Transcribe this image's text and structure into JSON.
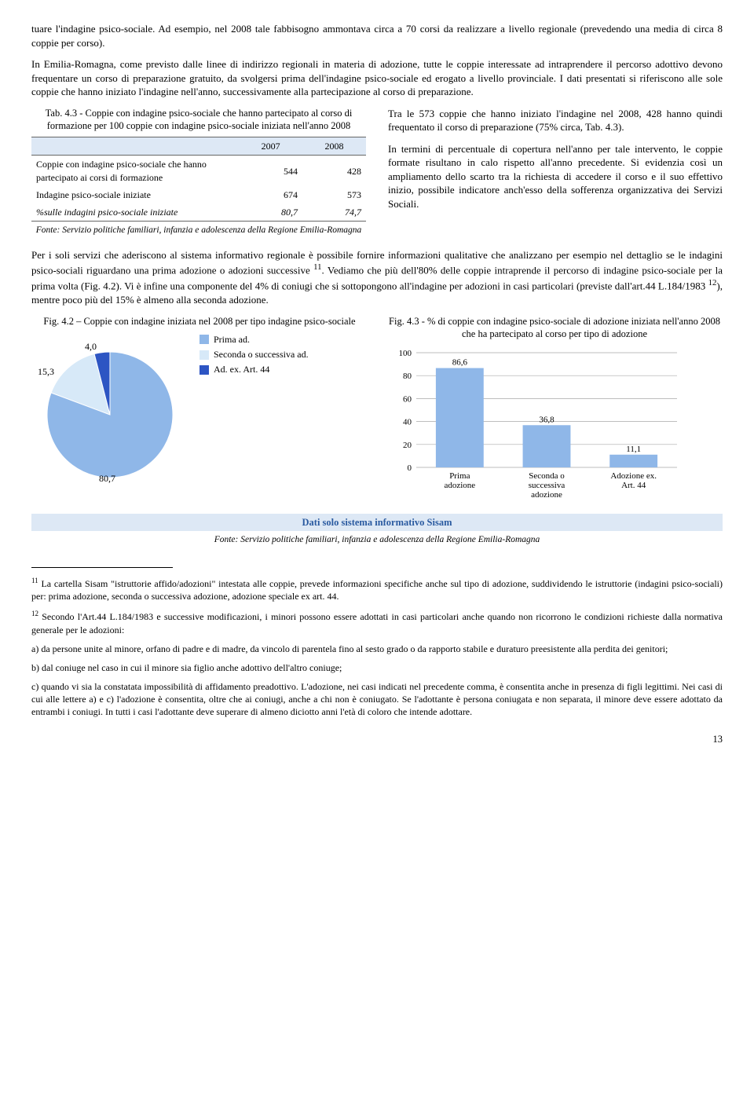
{
  "para1": "tuare l'indagine psico-sociale. Ad esempio, nel 2008 tale fabbisogno ammontava circa a 70 corsi da realizzare a livello regionale (prevedendo una media di circa 8 coppie per corso).",
  "para2": "In Emilia-Romagna, come previsto dalle linee di indirizzo regionali in materia di adozione, tutte le coppie interessate ad intraprendere il percorso adottivo devono frequentare un corso di preparazione gratuito, da svolgersi prima dell'indagine psico-sociale ed erogato a livello provinciale. I dati presentati si riferiscono alle sole coppie che hanno iniziato l'indagine nell'anno, successivamente alla partecipazione al corso di preparazione.",
  "tab43_title": "Tab. 4.3 - Coppie con indagine psico-sociale che hanno partecipato al corso di formazione per 100 coppie con indagine psico-sociale iniziata nell'anno 2008",
  "tab43_headers": [
    "",
    "2007",
    "2008"
  ],
  "tab43_rows": [
    {
      "label": "Coppie con indagine psico-sociale che hanno partecipato ai corsi di formazione",
      "v07": "544",
      "v08": "428",
      "italic": false
    },
    {
      "label": "Indagine psico-sociale iniziate",
      "v07": "674",
      "v08": "573",
      "italic": false
    },
    {
      "label": "%sulle indagini psico-sociale iniziate",
      "v07": "80,7",
      "v08": "74,7",
      "italic": true
    }
  ],
  "tab43_source": "Fonte: Servizio politiche familiari, infanzia e adolescenza della Regione Emilia-Romagna",
  "right_para": "Tra le 573 coppie che hanno iniziato l'indagine nel 2008, 428 hanno quindi frequentato il corso di preparazione (75% circa, Tab. 4.3).",
  "right_para2": "In termini di percentuale di copertura nell'anno per tale intervento, le coppie formate risultano in calo rispetto all'anno precedente. Si evidenzia così un ampliamento dello scarto tra la richiesta di accedere il corso e il suo effettivo inizio, possibile indicatore anch'esso della sofferenza organizzativa dei Servizi Sociali.",
  "para3_a": "Per i soli servizi che aderiscono al sistema informativo regionale è possibile fornire informazioni qualitative che analizzano per esempio nel dettaglio se le indagini psico-sociali riguardano una prima adozione o adozioni successive ",
  "para3_b": ". Vediamo che più dell'80% delle coppie intraprende il percorso di indagine psico-sociale per la prima volta (Fig. 4.2). Vi è infine una componente del 4% di coniugi che si sottopongono all'indagine per adozioni in casi particolari (previste dall'art.44 L.184/1983 ",
  "para3_c": "), mentre poco più del 15% è almeno alla seconda adozione.",
  "fig42_title": "Fig. 4.2 – Coppie con indagine iniziata nel 2008 per tipo indagine psico-sociale",
  "pie": {
    "slices": [
      {
        "label": "Prima ad.",
        "value": 80.7,
        "color": "#8fb7e8"
      },
      {
        "label": "Seconda o successiva ad.",
        "value": 15.3,
        "color": "#d7e9f8"
      },
      {
        "label": "Ad. ex. Art. 44",
        "value": 4.0,
        "color": "#2d55c3"
      }
    ],
    "data_labels": {
      "prima": "80,7",
      "seconda": "15,3",
      "art44": "4,0"
    }
  },
  "fig43_title": "Fig. 4.3 - % di coppie con indagine psico-sociale di adozione iniziata nell'anno 2008 che ha partecipato al corso per tipo di adozione",
  "bar": {
    "ymax": 100,
    "ytick_step": 20,
    "categories": [
      "Prima adozione",
      "Seconda o successiva adozione",
      "Adozione ex. Art. 44"
    ],
    "values": [
      86.6,
      36.8,
      11.1
    ],
    "value_labels": [
      "86,6",
      "36,8",
      "11,1"
    ],
    "bar_color": "#8fb7e8",
    "grid_color": "#a8a8a8"
  },
  "sisam_title": "Dati solo sistema informativo Sisam",
  "sisam_source": "Fonte: Servizio politiche familiari, infanzia e adolescenza della Regione Emilia-Romagna",
  "fn11": "La cartella Sisam \"istruttorie affido/adozioni\" intestata alle coppie, prevede informazioni specifiche anche sul tipo di adozione, suddividendo le istruttorie (indagini psico-sociali) per: prima adozione, seconda o successiva adozione, adozione speciale ex art. 44.",
  "fn12": "Secondo l'Art.44 L.184/1983 e successive modificazioni, i minori possono essere adottati in casi particolari anche quando non ricorrono le condizioni richieste dalla normativa generale per le adozioni:",
  "fn12a": "a) da persone unite al minore, orfano di padre e di madre, da vincolo di parentela fino al sesto grado o da rapporto stabile e duraturo preesistente alla perdita dei genitori;",
  "fn12b": "b) dal coniuge nel caso in cui il minore sia figlio anche adottivo dell'altro coniuge;",
  "fn12c": "c) quando vi sia la constatata impossibilità di affidamento preadottivo. L'adozione, nei casi indicati nel precedente comma, è consentita anche in presenza di figli legittimi. Nei casi di cui alle lettere a) e c) l'adozione è consentita, oltre che ai coniugi, anche a chi non è coniugato. Se l'adottante è persona coniugata e non separata, il minore deve essere adottato da entrambi i coniugi. In tutti i casi l'adottante deve superare di almeno diciotto anni l'età di coloro che intende adottare.",
  "page_number": "13"
}
